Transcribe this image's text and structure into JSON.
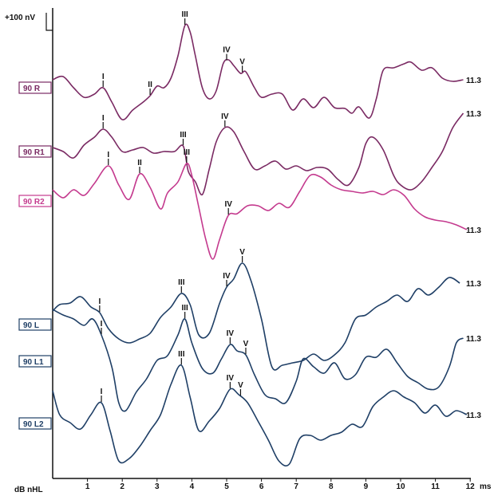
{
  "chart_data": {
    "type": "line",
    "scale_label": "+100 nV",
    "x_unit_label": "ms",
    "y_unit_label": "dB nHL",
    "xlim": [
      0,
      12.3
    ],
    "x_ticks": [
      1,
      2,
      3,
      4,
      5,
      6,
      7,
      8,
      9,
      10,
      11,
      12
    ],
    "grid": false,
    "series": [
      {
        "name": "90 R",
        "color": "#7a2a63",
        "label_color": "#7a2a63",
        "end_label": "11.3",
        "points": [
          [
            0,
            100
          ],
          [
            0.3,
            96
          ],
          [
            0.6,
            110
          ],
          [
            0.9,
            122
          ],
          [
            1.2,
            118
          ],
          [
            1.45,
            110
          ],
          [
            1.7,
            128
          ],
          [
            2.0,
            150
          ],
          [
            2.3,
            138
          ],
          [
            2.6,
            128
          ],
          [
            2.8,
            120
          ],
          [
            3.0,
            108
          ],
          [
            3.2,
            110
          ],
          [
            3.4,
            98
          ],
          [
            3.6,
            70
          ],
          [
            3.8,
            32
          ],
          [
            3.95,
            40
          ],
          [
            4.1,
            70
          ],
          [
            4.3,
            110
          ],
          [
            4.5,
            124
          ],
          [
            4.7,
            114
          ],
          [
            4.9,
            80
          ],
          [
            5.05,
            75
          ],
          [
            5.2,
            82
          ],
          [
            5.4,
            92
          ],
          [
            5.55,
            90
          ],
          [
            5.8,
            110
          ],
          [
            6.0,
            122
          ],
          [
            6.3,
            118
          ],
          [
            6.6,
            118
          ],
          [
            6.9,
            138
          ],
          [
            7.2,
            124
          ],
          [
            7.5,
            135
          ],
          [
            7.8,
            122
          ],
          [
            8.1,
            135
          ],
          [
            8.4,
            136
          ],
          [
            8.6,
            142
          ],
          [
            8.8,
            134
          ],
          [
            9.1,
            148
          ],
          [
            9.3,
            124
          ],
          [
            9.5,
            88
          ],
          [
            9.8,
            85
          ],
          [
            10.1,
            80
          ],
          [
            10.3,
            78
          ],
          [
            10.6,
            88
          ],
          [
            10.9,
            85
          ],
          [
            11.2,
            98
          ],
          [
            11.5,
            102
          ],
          [
            11.8,
            100
          ]
        ],
        "peaks": [
          {
            "label": "I",
            "x": 1.45
          },
          {
            "label": "II",
            "x": 2.8
          },
          {
            "label": "III",
            "x": 3.8
          },
          {
            "label": "IV",
            "x": 5.0
          },
          {
            "label": "V",
            "x": 5.45
          }
        ]
      },
      {
        "name": "90 R1",
        "color": "#7a2a63",
        "label_color": "#7a2a63",
        "end_label": "11.3",
        "points": [
          [
            0,
            185
          ],
          [
            0.3,
            190
          ],
          [
            0.6,
            198
          ],
          [
            0.9,
            182
          ],
          [
            1.2,
            172
          ],
          [
            1.45,
            162
          ],
          [
            1.7,
            172
          ],
          [
            2.0,
            190
          ],
          [
            2.3,
            188
          ],
          [
            2.6,
            185
          ],
          [
            2.9,
            192
          ],
          [
            3.2,
            190
          ],
          [
            3.5,
            190
          ],
          [
            3.75,
            183
          ],
          [
            3.9,
            215
          ],
          [
            4.1,
            228
          ],
          [
            4.3,
            244
          ],
          [
            4.5,
            212
          ],
          [
            4.7,
            178
          ],
          [
            4.95,
            160
          ],
          [
            5.2,
            165
          ],
          [
            5.5,
            190
          ],
          [
            5.8,
            212
          ],
          [
            6.1,
            208
          ],
          [
            6.4,
            202
          ],
          [
            6.7,
            212
          ],
          [
            7.0,
            208
          ],
          [
            7.3,
            214
          ],
          [
            7.6,
            210
          ],
          [
            7.9,
            212
          ],
          [
            8.2,
            225
          ],
          [
            8.5,
            232
          ],
          [
            8.8,
            210
          ],
          [
            9.0,
            180
          ],
          [
            9.2,
            172
          ],
          [
            9.5,
            188
          ],
          [
            9.8,
            220
          ],
          [
            10.0,
            232
          ],
          [
            10.3,
            238
          ],
          [
            10.6,
            228
          ],
          [
            10.9,
            210
          ],
          [
            11.2,
            190
          ],
          [
            11.5,
            160
          ],
          [
            11.8,
            142
          ]
        ],
        "peaks": [
          {
            "label": "I",
            "x": 1.45
          },
          {
            "label": "III",
            "x": 3.75
          },
          {
            "label": "IV",
            "x": 4.95
          }
        ]
      },
      {
        "name": "90 R2",
        "color": "#c43a8e",
        "label_color": "#c43a8e",
        "end_label": "11.3",
        "points": [
          [
            0,
            238
          ],
          [
            0.3,
            248
          ],
          [
            0.6,
            238
          ],
          [
            0.9,
            245
          ],
          [
            1.2,
            230
          ],
          [
            1.6,
            208
          ],
          [
            1.9,
            232
          ],
          [
            2.2,
            250
          ],
          [
            2.5,
            218
          ],
          [
            2.8,
            235
          ],
          [
            3.1,
            262
          ],
          [
            3.3,
            242
          ],
          [
            3.6,
            228
          ],
          [
            3.85,
            205
          ],
          [
            4.0,
            220
          ],
          [
            4.2,
            260
          ],
          [
            4.4,
            300
          ],
          [
            4.6,
            325
          ],
          [
            4.8,
            300
          ],
          [
            5.05,
            270
          ],
          [
            5.3,
            268
          ],
          [
            5.6,
            258
          ],
          [
            5.9,
            258
          ],
          [
            6.2,
            264
          ],
          [
            6.5,
            255
          ],
          [
            6.8,
            260
          ],
          [
            7.1,
            240
          ],
          [
            7.4,
            220
          ],
          [
            7.7,
            222
          ],
          [
            8.0,
            232
          ],
          [
            8.3,
            238
          ],
          [
            8.6,
            240
          ],
          [
            8.9,
            242
          ],
          [
            9.2,
            240
          ],
          [
            9.5,
            244
          ],
          [
            9.8,
            238
          ],
          [
            10.1,
            245
          ],
          [
            10.4,
            262
          ],
          [
            10.7,
            272
          ],
          [
            11.0,
            276
          ],
          [
            11.3,
            278
          ],
          [
            11.6,
            282
          ],
          [
            11.9,
            288
          ]
        ],
        "peaks": [
          {
            "label": "I",
            "x": 1.6
          },
          {
            "label": "II",
            "x": 2.5
          },
          {
            "label": "III",
            "x": 3.85
          },
          {
            "label": "IV",
            "x": 5.05
          }
        ]
      },
      {
        "name": "90 L",
        "color": "#1f3f66",
        "label_color": "#1f3f66",
        "end_label": "11.3",
        "points": [
          [
            0,
            390
          ],
          [
            0.2,
            382
          ],
          [
            0.5,
            380
          ],
          [
            0.8,
            372
          ],
          [
            1.1,
            385
          ],
          [
            1.35,
            392
          ],
          [
            1.6,
            412
          ],
          [
            1.9,
            425
          ],
          [
            2.2,
            430
          ],
          [
            2.5,
            425
          ],
          [
            2.8,
            418
          ],
          [
            3.1,
            398
          ],
          [
            3.4,
            385
          ],
          [
            3.7,
            368
          ],
          [
            3.95,
            382
          ],
          [
            4.2,
            420
          ],
          [
            4.5,
            418
          ],
          [
            4.8,
            380
          ],
          [
            5.0,
            360
          ],
          [
            5.2,
            350
          ],
          [
            5.45,
            330
          ],
          [
            5.7,
            352
          ],
          [
            6.0,
            400
          ],
          [
            6.3,
            460
          ],
          [
            6.6,
            458
          ],
          [
            6.9,
            455
          ],
          [
            7.2,
            452
          ],
          [
            7.5,
            444
          ],
          [
            7.8,
            452
          ],
          [
            8.1,
            445
          ],
          [
            8.4,
            430
          ],
          [
            8.7,
            400
          ],
          [
            9.0,
            395
          ],
          [
            9.3,
            385
          ],
          [
            9.6,
            378
          ],
          [
            9.9,
            370
          ],
          [
            10.2,
            378
          ],
          [
            10.5,
            362
          ],
          [
            10.8,
            370
          ],
          [
            11.1,
            360
          ],
          [
            11.4,
            348
          ],
          [
            11.7,
            355
          ]
        ],
        "peaks": [
          {
            "label": "I",
            "x": 1.35
          },
          {
            "label": "III",
            "x": 3.7
          },
          {
            "label": "IV",
            "x": 5.0
          },
          {
            "label": "V",
            "x": 5.45
          }
        ]
      },
      {
        "name": "90 L1",
        "color": "#1f3f66",
        "label_color": "#1f3f66",
        "end_label": "11.3",
        "points": [
          [
            0,
            388
          ],
          [
            0.3,
            395
          ],
          [
            0.6,
            400
          ],
          [
            0.9,
            408
          ],
          [
            1.15,
            400
          ],
          [
            1.4,
            420
          ],
          [
            1.7,
            460
          ],
          [
            1.9,
            505
          ],
          [
            2.1,
            515
          ],
          [
            2.4,
            492
          ],
          [
            2.7,
            475
          ],
          [
            3.0,
            452
          ],
          [
            3.3,
            446
          ],
          [
            3.6,
            420
          ],
          [
            3.8,
            400
          ],
          [
            4.0,
            430
          ],
          [
            4.3,
            462
          ],
          [
            4.6,
            468
          ],
          [
            4.85,
            450
          ],
          [
            5.1,
            432
          ],
          [
            5.3,
            440
          ],
          [
            5.55,
            445
          ],
          [
            5.8,
            470
          ],
          [
            6.1,
            495
          ],
          [
            6.4,
            500
          ],
          [
            6.7,
            505
          ],
          [
            7.0,
            478
          ],
          [
            7.2,
            450
          ],
          [
            7.5,
            460
          ],
          [
            7.8,
            468
          ],
          [
            8.1,
            455
          ],
          [
            8.4,
            475
          ],
          [
            8.7,
            470
          ],
          [
            9.0,
            448
          ],
          [
            9.3,
            448
          ],
          [
            9.6,
            438
          ],
          [
            9.9,
            455
          ],
          [
            10.2,
            472
          ],
          [
            10.5,
            480
          ],
          [
            10.8,
            488
          ],
          [
            11.1,
            485
          ],
          [
            11.4,
            460
          ],
          [
            11.6,
            430
          ],
          [
            11.8,
            424
          ]
        ],
        "peaks": [
          {
            "label": "I",
            "x": 1.4
          },
          {
            "label": "III",
            "x": 3.8
          },
          {
            "label": "IV",
            "x": 5.1
          },
          {
            "label": "V",
            "x": 5.55
          }
        ]
      },
      {
        "name": "90 L2",
        "color": "#1f3f66",
        "label_color": "#1f3f66",
        "end_label": "11.3",
        "points": [
          [
            0,
            490
          ],
          [
            0.2,
            520
          ],
          [
            0.5,
            530
          ],
          [
            0.8,
            538
          ],
          [
            1.1,
            520
          ],
          [
            1.4,
            505
          ],
          [
            1.65,
            540
          ],
          [
            1.9,
            578
          ],
          [
            2.2,
            575
          ],
          [
            2.5,
            560
          ],
          [
            2.8,
            540
          ],
          [
            3.1,
            520
          ],
          [
            3.4,
            482
          ],
          [
            3.7,
            458
          ],
          [
            3.95,
            498
          ],
          [
            4.2,
            540
          ],
          [
            4.5,
            528
          ],
          [
            4.8,
            512
          ],
          [
            5.1,
            488
          ],
          [
            5.35,
            495
          ],
          [
            5.6,
            505
          ],
          [
            5.9,
            528
          ],
          [
            6.2,
            552
          ],
          [
            6.5,
            578
          ],
          [
            6.8,
            582
          ],
          [
            7.1,
            550
          ],
          [
            7.4,
            546
          ],
          [
            7.7,
            552
          ],
          [
            8.0,
            546
          ],
          [
            8.3,
            542
          ],
          [
            8.6,
            532
          ],
          [
            8.9,
            535
          ],
          [
            9.2,
            510
          ],
          [
            9.5,
            498
          ],
          [
            9.8,
            490
          ],
          [
            10.1,
            498
          ],
          [
            10.4,
            505
          ],
          [
            10.7,
            518
          ],
          [
            11.0,
            508
          ],
          [
            11.3,
            522
          ],
          [
            11.6,
            515
          ],
          [
            11.9,
            520
          ]
        ],
        "peaks": [
          {
            "label": "I",
            "x": 1.4
          },
          {
            "label": "III",
            "x": 3.7
          },
          {
            "label": "IV",
            "x": 5.1
          },
          {
            "label": "V",
            "x": 5.4
          }
        ]
      }
    ]
  }
}
